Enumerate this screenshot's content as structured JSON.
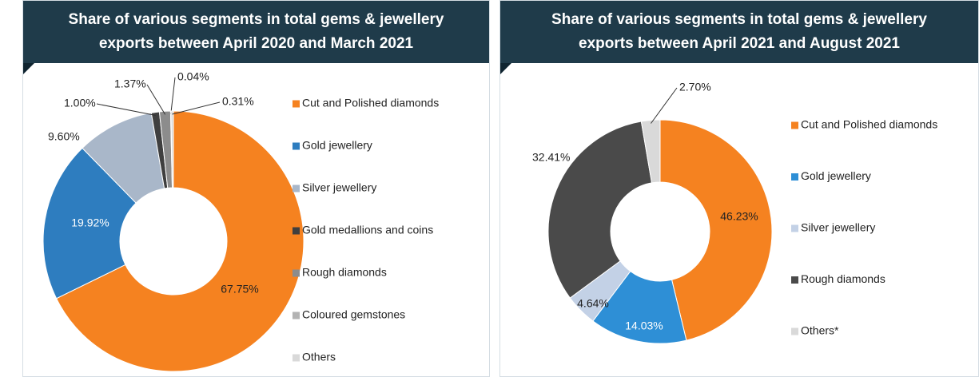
{
  "chart_data": [
    {
      "type": "pie",
      "title": "Share of various segments in total gems & jewellery exports between April 2020 and March 2021",
      "categories": [
        "Cut and Polished diamonds",
        "Gold jewellery",
        "Silver jewellery",
        "Gold medallions and coins",
        "Rough diamonds",
        "Coloured gemstones",
        "Others"
      ],
      "values": [
        67.75,
        19.92,
        9.6,
        1.0,
        1.37,
        0.04,
        0.31
      ],
      "value_labels": [
        "67.75%",
        "19.92%",
        "9.60%",
        "1.00%",
        "1.37%",
        "0.04%",
        "0.31%"
      ],
      "colors": [
        "#f58220",
        "#2e7dbf",
        "#a9b7c9",
        "#3f3f3f",
        "#8c8c8c",
        "#b3b3b3",
        "#d9d9d9"
      ]
    },
    {
      "type": "pie",
      "title": "Share of various segments in total gems & jewellery exports between April 2021 and August 2021",
      "categories": [
        "Cut and Polished diamonds",
        "Gold jewellery",
        "Silver jewellery",
        "Rough diamonds",
        "Others*"
      ],
      "values": [
        46.23,
        14.03,
        4.64,
        32.41,
        2.7
      ],
      "value_labels": [
        "46.23%",
        "14.03%",
        "4.64%",
        "32.41%",
        "2.70%"
      ],
      "colors": [
        "#f58220",
        "#2e8fd6",
        "#c3d1e6",
        "#4a4a4a",
        "#d9d9d9"
      ]
    }
  ]
}
